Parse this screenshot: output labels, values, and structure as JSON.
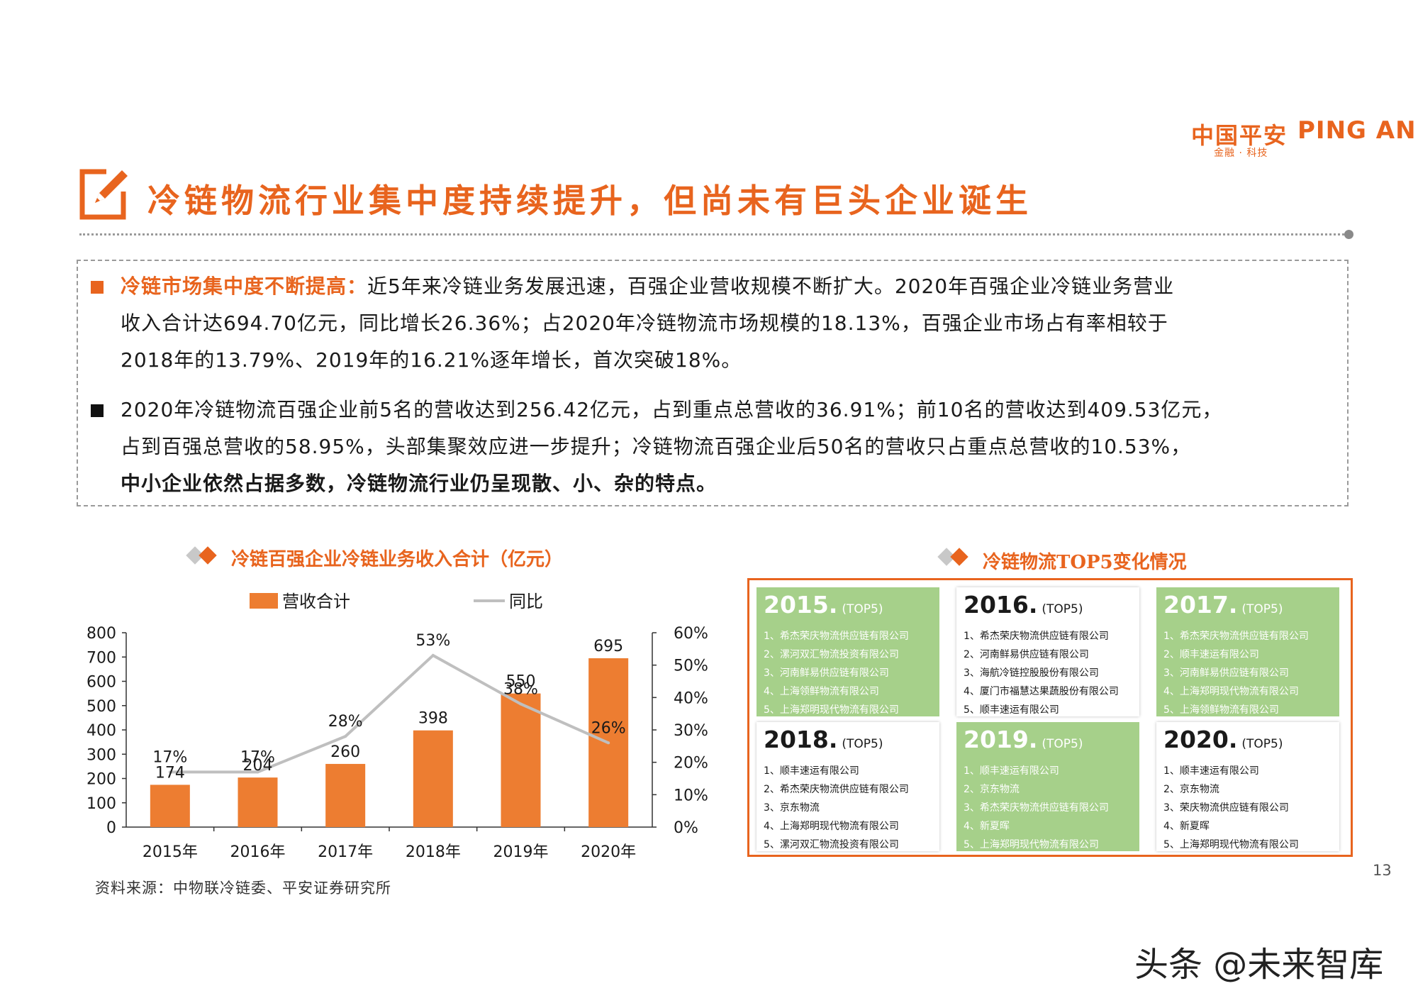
{
  "logo": {
    "cn": "中国平安",
    "en": "PING AN",
    "sub": "金融 · 科技"
  },
  "title": "冷链物流行业集中度持续提升，但尚未有巨头企业诞生",
  "bullets": [
    {
      "lead": "冷链市场集中度不断提高：",
      "line1": "近5年来冷链业务发展迅速，百强企业营收规模不断扩大。2020年百强企业冷链业务营业",
      "line2": "收入合计达694.70亿元，同比增长26.36%；占2020年冷链物流市场规模的18.13%，百强企业市场占有率相较于",
      "line3": "2018年的13.79%、2019年的16.21%逐年增长，首次突破18%。"
    },
    {
      "line1": "2020年冷链物流百强企业前5名的营收达到256.42亿元，占到重点总营收的36.91%；前10名的营收达到409.53亿元，",
      "line2": "占到百强总营收的58.95%，头部集聚效应进一步提升；冷链物流百强企业后50名的营收只占重点总营收的10.53%，",
      "line3_bold": "中小企业依然占据多数，冷链物流行业仍呈现散、小、杂的特点。"
    }
  ],
  "chart_section_title": "冷链百强企业冷链业务收入合计（亿元）",
  "top5_section_title": "冷链物流TOP5变化情况",
  "chart_data": {
    "type": "bar",
    "categories": [
      "2015年",
      "2016年",
      "2017年",
      "2018年",
      "2019年",
      "2020年"
    ],
    "series": [
      {
        "name": "营收合计",
        "type": "bar",
        "values": [
          174,
          204,
          260,
          398,
          550,
          695
        ],
        "labels": [
          "174",
          "204",
          "260",
          "398",
          "550",
          "695"
        ],
        "color": "#ed7d31",
        "axis": "left"
      },
      {
        "name": "同比",
        "type": "line",
        "values": [
          17,
          17,
          28,
          53,
          38,
          26
        ],
        "labels": [
          "17%",
          "17%",
          "28%",
          "53%",
          "38%",
          "26%"
        ],
        "color": "#bfbfbf",
        "axis": "right"
      }
    ],
    "ylim": [
      0,
      800
    ],
    "yticks": [
      "0",
      "100",
      "200",
      "300",
      "400",
      "500",
      "600",
      "700",
      "800"
    ],
    "y2lim": [
      0,
      60
    ],
    "y2ticks": [
      "0%",
      "10%",
      "20%",
      "30%",
      "40%",
      "50%",
      "60%"
    ],
    "legend": "top"
  },
  "top5": [
    {
      "year": "2015.",
      "tag": "(TOP5)",
      "style": "green",
      "items": [
        "1、希杰荣庆物流供应链有限公司",
        "2、漯河双汇物流投资有限公司",
        "3、河南鲜易供应链有限公司",
        "4、上海领鲜物流有限公司",
        "5、上海郑明现代物流有限公司"
      ]
    },
    {
      "year": "2016.",
      "tag": "(TOP5)",
      "style": "white",
      "items": [
        "1、希杰荣庆物流供应链有限公司",
        "2、河南鲜易供应链有限公司",
        "3、海航冷链控股股份有限公司",
        "4、厦门市福慧达果蔬股份有限公司",
        "5、顺丰速运有限公司"
      ]
    },
    {
      "year": "2017.",
      "tag": "(TOP5)",
      "style": "green",
      "items": [
        "1、希杰荣庆物流供应链有限公司",
        "2、顺丰速运有限公司",
        "3、河南鲜易供应链有限公司",
        "4、上海郑明现代物流有限公司",
        "5、上海领鲜物流有限公司"
      ]
    },
    {
      "year": "2018.",
      "tag": "(TOP5)",
      "style": "white",
      "items": [
        "1、顺丰速运有限公司",
        "2、希杰荣庆物流供应链有限公司",
        "3、京东物流",
        "4、上海郑明现代物流有限公司",
        "5、漯河双汇物流投资有限公司"
      ]
    },
    {
      "year": "2019.",
      "tag": "(TOP5)",
      "style": "green",
      "items": [
        "1、顺丰速运有限公司",
        "2、京东物流",
        "3、希杰荣庆物流供应链有限公司",
        "4、新夏晖",
        "5、上海郑明现代物流有限公司"
      ]
    },
    {
      "year": "2020.",
      "tag": "(TOP5)",
      "style": "white",
      "items": [
        "1、顺丰速运有限公司",
        "2、京东物流",
        "3、荣庆物流供应链有限公司",
        "4、新夏晖",
        "5、上海郑明现代物流有限公司"
      ]
    }
  ],
  "source": "资料来源：中物联冷链委、平安证券研究所",
  "page_number": "13",
  "watermark": "头条 @未来智库",
  "colors": {
    "accent": "#e8641e",
    "bar": "#ed7d31",
    "line": "#bfbfbf",
    "card_green": "#a6d08a"
  },
  "icons": {
    "title": "pencil-note-icon",
    "section": "diamond-pair-icon"
  }
}
